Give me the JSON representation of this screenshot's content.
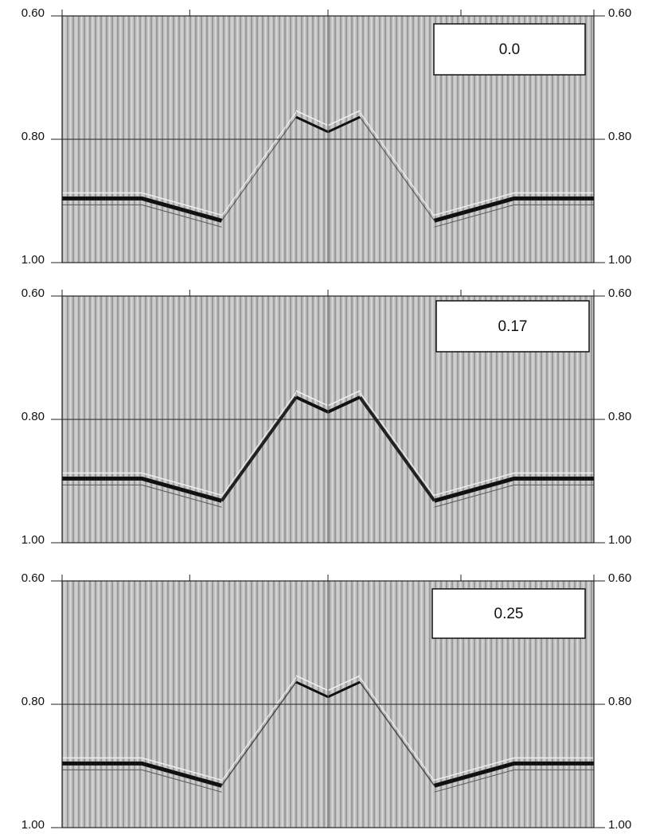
{
  "panels": [
    {
      "label": "0.0",
      "left_ticks": [
        "0.60",
        "0.80",
        "1.00"
      ],
      "right_ticks": [
        "0.60",
        "0.80",
        "1.00"
      ]
    },
    {
      "label": "0.17",
      "left_ticks": [
        "0.60",
        "0.80",
        "1.00"
      ],
      "right_ticks": [
        "0.60",
        "0.80",
        "1.00"
      ]
    },
    {
      "label": "0.25",
      "left_ticks": [
        "0.60",
        "0.80",
        "1.00"
      ],
      "right_ticks": [
        "0.60",
        "0.80",
        "1.00"
      ]
    }
  ]
}
